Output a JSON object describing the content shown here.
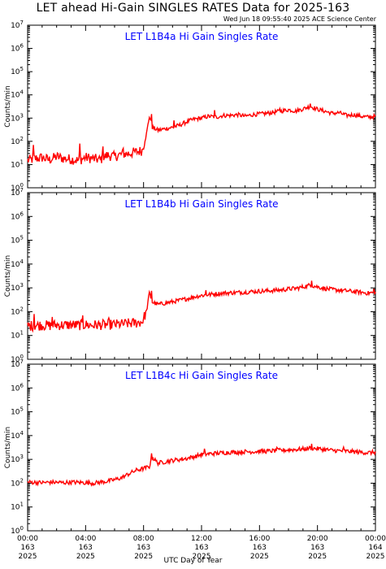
{
  "title": "LET ahead Hi-Gain SINGLES RATES Data for 2025-163",
  "timestamp": "Wed Jun 18 09:55:40 2025 ACE Science Center",
  "xlabel": "UTC Day of Year",
  "colors": {
    "series": "#ff0000",
    "panel_title": "#0000ff",
    "axes": "#000000"
  },
  "chart_data": [
    {
      "type": "line",
      "title": "LET L1B4a Hi Gain Singles Rate",
      "ylabel": "Counts/min",
      "yscale": "log",
      "ylim": [
        1,
        10000000
      ],
      "ytick_exponents": [
        "0",
        "1",
        "2",
        "3",
        "4",
        "5",
        "6",
        "7"
      ],
      "xlim": [
        0,
        24
      ],
      "xtick_labels": [
        [
          "00:00",
          "163",
          "2025"
        ],
        [
          "04:00",
          "163",
          "2025"
        ],
        [
          "08:00",
          "163",
          "2025"
        ],
        [
          "12:00",
          "163",
          "2025"
        ],
        [
          "16:00",
          "163",
          "2025"
        ],
        [
          "20:00",
          "163",
          "2025"
        ],
        [
          "00:00",
          "164",
          "2025"
        ]
      ],
      "grid": false,
      "series": [
        {
          "x": [
            0,
            0.5,
            1,
            1.5,
            2,
            2.5,
            3,
            3.5,
            4,
            4.5,
            5,
            5.5,
            6,
            6.5,
            7,
            7.5,
            7.9,
            8.2,
            8.4,
            8.6,
            9,
            9.5,
            10,
            10.5,
            11,
            11.5,
            12,
            12.5,
            13,
            13.5,
            14,
            14.5,
            15,
            15.5,
            16,
            16.5,
            17,
            17.5,
            18,
            18.5,
            19,
            19.5,
            20,
            20.5,
            21,
            21.5,
            22,
            22.5,
            23,
            23.5,
            24
          ],
          "y": [
            15,
            18,
            20,
            16,
            22,
            18,
            17,
            15,
            20,
            18,
            16,
            25,
            22,
            28,
            30,
            35,
            40,
            200,
            1200,
            400,
            300,
            350,
            400,
            500,
            700,
            900,
            1000,
            1200,
            1100,
            1300,
            1300,
            1400,
            1200,
            1400,
            1500,
            1600,
            1800,
            2000,
            2300,
            2000,
            2500,
            3200,
            2400,
            2000,
            1600,
            1700,
            1300,
            1400,
            1200,
            1100,
            1200
          ],
          "spikes": [
            {
              "x": 0.4,
              "y": 70
            },
            {
              "x": 3.6,
              "y": 80
            },
            {
              "x": 5.2,
              "y": 60
            },
            {
              "x": 6.6,
              "y": 50
            },
            {
              "x": 8.55,
              "y": 1500
            },
            {
              "x": 10.1,
              "y": 800
            },
            {
              "x": 12.9,
              "y": 2200
            },
            {
              "x": 19.5,
              "y": 4200
            },
            {
              "x": 17.4,
              "y": 2600
            }
          ]
        }
      ]
    },
    {
      "type": "line",
      "title": "LET L1B4b Hi Gain Singles Rate",
      "ylabel": "Counts/min",
      "yscale": "log",
      "ylim": [
        1,
        10000000
      ],
      "ytick_exponents": [
        "0",
        "1",
        "2",
        "3",
        "4",
        "5",
        "6",
        "7"
      ],
      "xlim": [
        0,
        24
      ],
      "xtick_labels": [
        [
          "00:00",
          "163",
          "2025"
        ],
        [
          "04:00",
          "163",
          "2025"
        ],
        [
          "08:00",
          "163",
          "2025"
        ],
        [
          "12:00",
          "163",
          "2025"
        ],
        [
          "16:00",
          "163",
          "2025"
        ],
        [
          "20:00",
          "163",
          "2025"
        ],
        [
          "00:00",
          "164",
          "2025"
        ]
      ],
      "grid": false,
      "series": [
        {
          "x": [
            0,
            0.5,
            1,
            1.5,
            2,
            2.5,
            3,
            3.5,
            4,
            4.5,
            5,
            5.5,
            6,
            6.5,
            7,
            7.5,
            7.9,
            8.2,
            8.4,
            8.6,
            9,
            9.5,
            10,
            10.5,
            11,
            11.5,
            12,
            12.5,
            13,
            13.5,
            14,
            14.5,
            15,
            15.5,
            16,
            16.5,
            17,
            17.5,
            18,
            18.5,
            19,
            19.5,
            20,
            20.5,
            21,
            21.5,
            22,
            22.5,
            23,
            23.5,
            24
          ],
          "y": [
            25,
            26,
            27,
            26,
            28,
            27,
            28,
            27,
            28,
            27,
            28,
            28,
            29,
            30,
            32,
            34,
            38,
            100,
            600,
            250,
            200,
            230,
            260,
            300,
            350,
            420,
            480,
            520,
            560,
            600,
            620,
            640,
            660,
            700,
            720,
            750,
            780,
            820,
            900,
            950,
            1100,
            1300,
            1100,
            950,
            850,
            800,
            750,
            700,
            650,
            600,
            650
          ],
          "spikes": [
            {
              "x": 0.45,
              "y": 80
            },
            {
              "x": 1.7,
              "y": 60
            },
            {
              "x": 3.8,
              "y": 70
            },
            {
              "x": 5.6,
              "y": 55
            },
            {
              "x": 8.55,
              "y": 750
            },
            {
              "x": 12.3,
              "y": 800
            },
            {
              "x": 19.6,
              "y": 2000
            },
            {
              "x": 23.9,
              "y": 900
            }
          ]
        }
      ]
    },
    {
      "type": "line",
      "title": "LET L1B4c Hi Gain Singles Rate",
      "ylabel": "Counts/min",
      "yscale": "log",
      "ylim": [
        1,
        10000000
      ],
      "ytick_exponents": [
        "0",
        "1",
        "2",
        "3",
        "4",
        "5",
        "6",
        "7"
      ],
      "xlim": [
        0,
        24
      ],
      "xtick_labels": [
        [
          "00:00",
          "163",
          "2025"
        ],
        [
          "04:00",
          "163",
          "2025"
        ],
        [
          "08:00",
          "163",
          "2025"
        ],
        [
          "12:00",
          "163",
          "2025"
        ],
        [
          "16:00",
          "163",
          "2025"
        ],
        [
          "20:00",
          "163",
          "2025"
        ],
        [
          "00:00",
          "164",
          "2025"
        ]
      ],
      "grid": false,
      "series": [
        {
          "x": [
            0,
            0.5,
            1,
            1.5,
            2,
            2.5,
            3,
            3.5,
            4,
            4.5,
            5,
            5.5,
            6,
            6.5,
            7,
            7.5,
            7.9,
            8.2,
            8.4,
            8.6,
            9,
            9.5,
            10,
            10.5,
            11,
            11.5,
            12,
            12.5,
            13,
            13.5,
            14,
            14.5,
            15,
            15.5,
            16,
            16.5,
            17,
            17.5,
            18,
            18.5,
            19,
            19.5,
            20,
            20.5,
            21,
            21.5,
            22,
            22.5,
            23,
            23.5,
            24
          ],
          "y": [
            110,
            108,
            105,
            110,
            108,
            105,
            110,
            108,
            105,
            100,
            110,
            120,
            140,
            170,
            250,
            350,
            400,
            450,
            500,
            1200,
            700,
            800,
            900,
            1000,
            1100,
            1300,
            1600,
            1700,
            1800,
            1900,
            2000,
            2000,
            2100,
            2100,
            2200,
            2200,
            2300,
            2400,
            2500,
            2600,
            2700,
            3000,
            2800,
            2600,
            2400,
            2300,
            2200,
            2100,
            2000,
            1900,
            2000
          ],
          "spikes": [
            {
              "x": 8.55,
              "y": 1800
            },
            {
              "x": 12.2,
              "y": 2800
            },
            {
              "x": 17.2,
              "y": 3200
            },
            {
              "x": 19.6,
              "y": 4500
            },
            {
              "x": 21.8,
              "y": 3300
            }
          ]
        }
      ]
    }
  ]
}
